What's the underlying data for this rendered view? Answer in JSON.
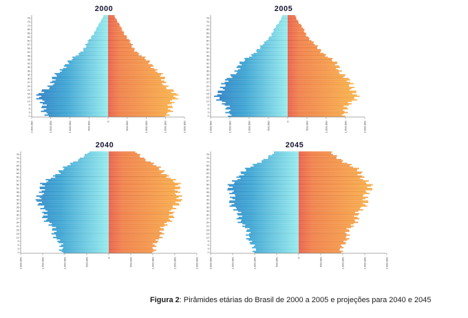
{
  "figure": {
    "caption_label": "Figura 2",
    "caption_text": ": Pirâmides etárias do Brasil de 2000 a 2005 e projeções para 2040 e 2045"
  },
  "axes": {
    "x_tick_labels": [
      "2.000.000",
      "1.500.000",
      "1.000.000",
      "500.000",
      "0",
      "500.000",
      "1.000.000",
      "1.500.000",
      "2.000.000"
    ],
    "x_max": 2000000,
    "age_min": 0,
    "age_max": 80,
    "age_label_step": 3,
    "age_label_max": 78
  },
  "colors": {
    "male_edge": "#2e7ec6",
    "male_mid": "#41a9d8",
    "male_center": "#9bf0f2",
    "female_center": "#ef6450",
    "female_mid": "#f5854e",
    "female_edge": "#ffbf4e",
    "title_color": "#141432",
    "axis_color": "#8f8f8f",
    "tick_label_color": "#3a3a3a"
  },
  "chart_data": [
    {
      "type": "bar",
      "subtype": "population-pyramid",
      "title": "2000",
      "xlim": [
        -2000000,
        2000000
      ],
      "ages": [
        0,
        5,
        10,
        15,
        20,
        25,
        30,
        35,
        40,
        45,
        50,
        55,
        60,
        65,
        70,
        75,
        80
      ],
      "series": [
        {
          "name": "left_blue",
          "values": [
            1550000,
            1650000,
            1750000,
            1800000,
            1700000,
            1520000,
            1400000,
            1300000,
            1150000,
            950000,
            760000,
            600000,
            500000,
            400000,
            300000,
            200000,
            120000
          ]
        },
        {
          "name": "right_orange",
          "values": [
            1500000,
            1600000,
            1700000,
            1760000,
            1680000,
            1520000,
            1420000,
            1330000,
            1180000,
            990000,
            800000,
            650000,
            550000,
            450000,
            350000,
            250000,
            170000
          ]
        }
      ]
    },
    {
      "type": "bar",
      "subtype": "population-pyramid",
      "title": "2005",
      "xlim": [
        -2000000,
        2000000
      ],
      "ages": [
        0,
        5,
        10,
        15,
        20,
        25,
        30,
        35,
        40,
        45,
        50,
        55,
        60,
        65,
        70,
        75,
        80
      ],
      "series": [
        {
          "name": "left_blue",
          "values": [
            1450000,
            1550000,
            1680000,
            1780000,
            1780000,
            1680000,
            1500000,
            1380000,
            1270000,
            1100000,
            900000,
            700000,
            550000,
            430000,
            330000,
            220000,
            140000
          ]
        },
        {
          "name": "right_orange",
          "values": [
            1400000,
            1500000,
            1630000,
            1740000,
            1750000,
            1660000,
            1500000,
            1400000,
            1300000,
            1140000,
            950000,
            760000,
            610000,
            490000,
            390000,
            280000,
            200000
          ]
        }
      ]
    },
    {
      "type": "bar",
      "subtype": "population-pyramid",
      "title": "2040",
      "xlim": [
        -2000000,
        2000000
      ],
      "ages": [
        0,
        5,
        10,
        15,
        20,
        25,
        30,
        35,
        40,
        45,
        50,
        55,
        60,
        65,
        70,
        75,
        80
      ],
      "series": [
        {
          "name": "left_blue",
          "values": [
            1050000,
            1100000,
            1150000,
            1220000,
            1300000,
            1380000,
            1450000,
            1520000,
            1550000,
            1580000,
            1550000,
            1450000,
            1300000,
            1100000,
            880000,
            650000,
            450000
          ]
        },
        {
          "name": "right_orange",
          "values": [
            1000000,
            1060000,
            1110000,
            1180000,
            1270000,
            1350000,
            1430000,
            1500000,
            1550000,
            1600000,
            1600000,
            1520000,
            1400000,
            1220000,
            1020000,
            800000,
            620000
          ]
        }
      ]
    },
    {
      "type": "bar",
      "subtype": "population-pyramid",
      "title": "2045",
      "xlim": [
        -2000000,
        2000000
      ],
      "ages": [
        0,
        5,
        10,
        15,
        20,
        25,
        30,
        35,
        40,
        45,
        50,
        55,
        60,
        65,
        70,
        75,
        80
      ],
      "series": [
        {
          "name": "left_blue",
          "values": [
            1000000,
            1050000,
            1100000,
            1150000,
            1220000,
            1300000,
            1380000,
            1450000,
            1500000,
            1530000,
            1550000,
            1500000,
            1400000,
            1220000,
            1000000,
            750000,
            520000
          ]
        },
        {
          "name": "right_orange",
          "values": [
            960000,
            1010000,
            1060000,
            1110000,
            1190000,
            1270000,
            1350000,
            1430000,
            1500000,
            1550000,
            1600000,
            1570000,
            1480000,
            1350000,
            1150000,
            920000,
            700000
          ]
        }
      ]
    }
  ]
}
